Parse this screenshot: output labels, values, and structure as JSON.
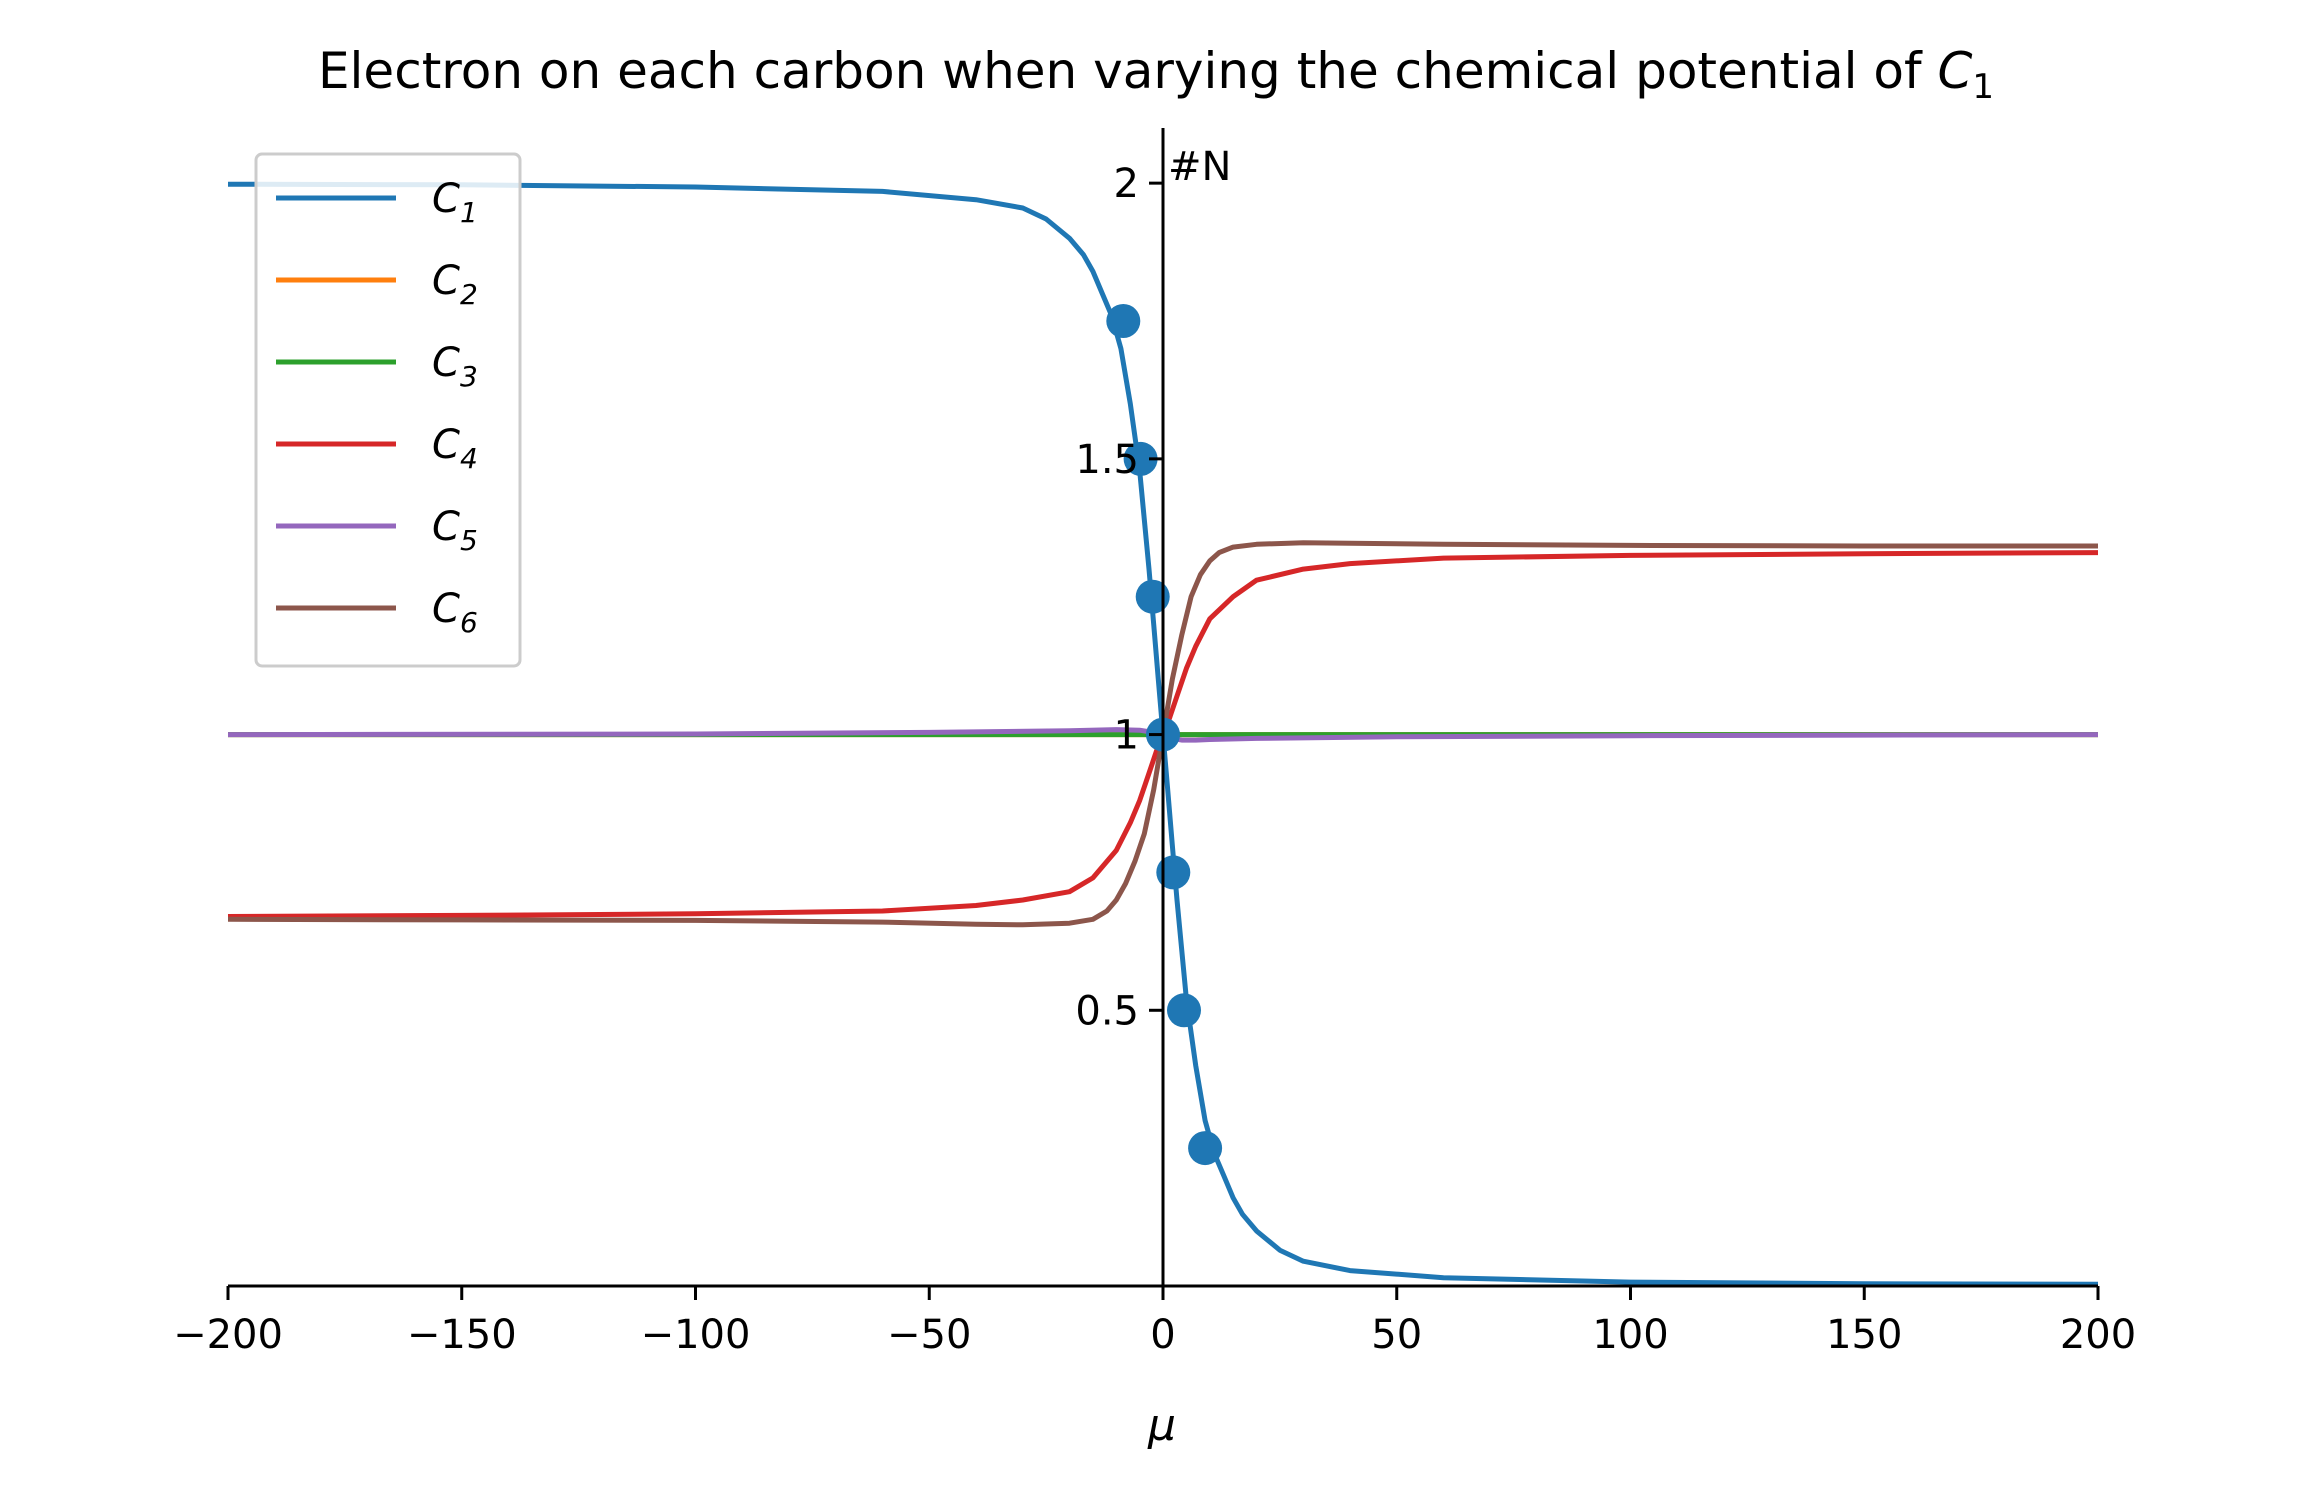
{
  "chart_data": {
    "type": "line",
    "title": "Electron on each carbon when varying the chemical potential of ",
    "title_math": {
      "base": "C",
      "sub": "1"
    },
    "xlabel": "μ",
    "ylabel": "#N",
    "xlim": [
      -200,
      200
    ],
    "ylim": [
      0,
      2.1
    ],
    "xticks": [
      -200,
      -150,
      -100,
      -50,
      0,
      50,
      100,
      150,
      200
    ],
    "xtick_labels": [
      "−200",
      "−150",
      "−100",
      "−50",
      "0",
      "50",
      "100",
      "150",
      "200"
    ],
    "yticks": [
      0.5,
      1,
      1.5,
      2
    ],
    "ytick_labels": [
      "0.5",
      "1",
      "1.5",
      "2"
    ],
    "grid": false,
    "legend_position": "top-left",
    "series": [
      {
        "name": "C1",
        "name_base": "C",
        "name_sub": "1",
        "color": "#1f77b4",
        "x": [
          -200,
          -150,
          -100,
          -60,
          -40,
          -30,
          -25,
          -20,
          -17,
          -15,
          -13,
          -11,
          -9,
          -7,
          -5,
          -3,
          -2,
          -1,
          0,
          1,
          2,
          3,
          5,
          7,
          9,
          11,
          13,
          15,
          17,
          20,
          25,
          30,
          40,
          60,
          100,
          150,
          200
        ],
        "y": [
          1.998,
          1.997,
          1.993,
          1.985,
          1.97,
          1.955,
          1.935,
          1.9,
          1.87,
          1.84,
          1.8,
          1.76,
          1.7,
          1.6,
          1.48,
          1.3,
          1.2,
          1.1,
          1.0,
          0.9,
          0.8,
          0.7,
          0.52,
          0.4,
          0.3,
          0.24,
          0.2,
          0.16,
          0.13,
          0.1,
          0.065,
          0.045,
          0.028,
          0.015,
          0.007,
          0.004,
          0.003
        ]
      },
      {
        "name": "C2",
        "name_base": "C",
        "name_sub": "2",
        "color": "#ff7f0e",
        "x": [
          -200,
          200
        ],
        "y": [
          1.0,
          1.0
        ]
      },
      {
        "name": "C3",
        "name_base": "C",
        "name_sub": "3",
        "color": "#2ca02c",
        "x": [
          -200,
          200
        ],
        "y": [
          1.0,
          1.0
        ]
      },
      {
        "name": "C4",
        "name_base": "C",
        "name_sub": "4",
        "color": "#d62728",
        "x": [
          -200,
          -150,
          -100,
          -60,
          -40,
          -30,
          -20,
          -15,
          -10,
          -7,
          -5,
          -3,
          -1,
          0,
          1,
          3,
          5,
          7,
          10,
          15,
          20,
          30,
          40,
          60,
          100,
          150,
          200
        ],
        "y": [
          0.67,
          0.672,
          0.675,
          0.68,
          0.69,
          0.7,
          0.715,
          0.74,
          0.79,
          0.84,
          0.88,
          0.93,
          0.98,
          1.0,
          1.02,
          1.07,
          1.12,
          1.16,
          1.21,
          1.25,
          1.28,
          1.3,
          1.31,
          1.32,
          1.325,
          1.328,
          1.33
        ]
      },
      {
        "name": "C5",
        "name_base": "C",
        "name_sub": "5",
        "color": "#9467bd",
        "x": [
          -200,
          -100,
          -50,
          -20,
          -10,
          -5,
          -2,
          0,
          2,
          4,
          7,
          10,
          20,
          50,
          100,
          200
        ],
        "y": [
          1.0,
          1.001,
          1.004,
          1.007,
          1.009,
          1.008,
          1.004,
          1.0,
          0.993,
          0.99,
          0.99,
          0.991,
          0.993,
          0.996,
          0.998,
          1.0
        ]
      },
      {
        "name": "C6",
        "name_base": "C",
        "name_sub": "6",
        "color": "#8c564b",
        "x": [
          -200,
          -150,
          -100,
          -60,
          -40,
          -30,
          -20,
          -15,
          -12,
          -10,
          -8,
          -6,
          -4,
          -2,
          0,
          2,
          4,
          6,
          8,
          10,
          12,
          15,
          20,
          30,
          40,
          60,
          100,
          150,
          200
        ],
        "y": [
          0.665,
          0.664,
          0.663,
          0.66,
          0.656,
          0.655,
          0.658,
          0.665,
          0.68,
          0.7,
          0.73,
          0.77,
          0.82,
          0.9,
          1.0,
          1.1,
          1.18,
          1.25,
          1.29,
          1.315,
          1.33,
          1.34,
          1.345,
          1.348,
          1.347,
          1.345,
          1.343,
          1.342,
          1.342
        ]
      }
    ],
    "markers": {
      "series": "C1",
      "color": "#1f77b4",
      "x": [
        -8.5,
        -4.8,
        -2.2,
        0,
        2.2,
        4.5,
        9
      ],
      "y": [
        1.75,
        1.5,
        1.25,
        1.0,
        0.75,
        0.5,
        0.25
      ]
    }
  }
}
